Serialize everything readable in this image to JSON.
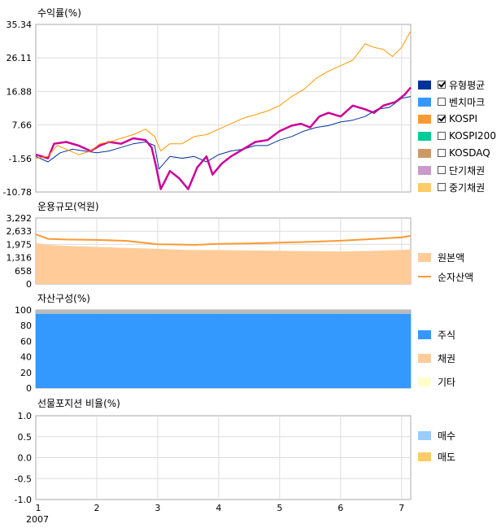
{
  "chart_data": [
    {
      "type": "line",
      "title": "수익률(%)",
      "yticks": [
        "35.34",
        "26.11",
        "16.88",
        "7.66",
        "-1.56",
        "-10.78"
      ],
      "ylim": [
        -10.78,
        35.34
      ],
      "x_period_start": 1,
      "x_period_end": 7.15,
      "xticks": [
        "1",
        "2",
        "3",
        "4",
        "5",
        "6",
        "7"
      ],
      "x_sublabel": "2007",
      "grid": true,
      "legend_position": "right",
      "series": [
        {
          "name": "유형평균",
          "color": "#003399",
          "x": [
            1.0,
            1.2,
            1.4,
            1.6,
            1.8,
            2.0,
            2.2,
            2.4,
            2.6,
            2.8,
            2.95,
            3.02,
            3.2,
            3.4,
            3.6,
            3.8,
            4.0,
            4.2,
            4.4,
            4.6,
            4.8,
            5.0,
            5.2,
            5.4,
            5.6,
            5.8,
            6.0,
            6.2,
            6.4,
            6.6,
            6.8,
            7.0,
            7.15
          ],
          "values": [
            -1,
            -2.5,
            0,
            1,
            0.5,
            0,
            0.5,
            1.5,
            2.5,
            3,
            2,
            -4.5,
            -1,
            -1.5,
            -1,
            -2.5,
            -0.5,
            0.5,
            1,
            2,
            2,
            3.5,
            4.5,
            6,
            7,
            7.5,
            8.5,
            9,
            10,
            12,
            12.5,
            15,
            15.5
          ]
        },
        {
          "name": "KOSPI",
          "color": "#cc0099",
          "x": [
            1.0,
            1.2,
            1.3,
            1.5,
            1.7,
            1.9,
            2.05,
            2.2,
            2.4,
            2.6,
            2.8,
            2.9,
            2.97,
            3.05,
            3.2,
            3.35,
            3.5,
            3.65,
            3.8,
            3.9,
            4.05,
            4.2,
            4.4,
            4.6,
            4.8,
            5.0,
            5.2,
            5.35,
            5.5,
            5.65,
            5.8,
            6.0,
            6.2,
            6.4,
            6.55,
            6.7,
            6.9,
            7.05,
            7.15
          ],
          "values": [
            -0.5,
            -1.5,
            2.5,
            3,
            2,
            0.5,
            2,
            3,
            2.5,
            4,
            3.5,
            1.5,
            -3.5,
            -10,
            -5,
            -7,
            -10,
            -4,
            -1,
            -6,
            -3,
            -1,
            1,
            3,
            3.5,
            6,
            7.5,
            8,
            7,
            10,
            11,
            10,
            13,
            12,
            11,
            13,
            14,
            16,
            18
          ]
        },
        {
          "name": "중기채권",
          "color": "#ff9900",
          "x": [
            1.0,
            1.2,
            1.35,
            1.5,
            1.7,
            1.9,
            2.05,
            2.2,
            2.4,
            2.6,
            2.8,
            2.95,
            3.05,
            3.2,
            3.4,
            3.6,
            3.8,
            4.0,
            4.2,
            4.4,
            4.6,
            4.8,
            5.0,
            5.2,
            5.4,
            5.6,
            5.8,
            6.0,
            6.2,
            6.4,
            6.55,
            6.7,
            6.85,
            7.0,
            7.15
          ],
          "values": [
            -1.5,
            -1,
            2,
            1,
            -0.5,
            0.5,
            2.5,
            3,
            4,
            5,
            6.5,
            4.5,
            0.5,
            2.5,
            2.5,
            4.5,
            5,
            6.5,
            8,
            9.5,
            10.5,
            11.5,
            13,
            15.5,
            17.5,
            20.5,
            22.5,
            24,
            25.5,
            30,
            29,
            28.5,
            26.5,
            29,
            33.5
          ]
        }
      ],
      "legend": [
        {
          "label": "유형평균",
          "color": "#003399",
          "checkbox": true,
          "checked": true
        },
        {
          "label": "벤치마크",
          "color": "#3399ff",
          "checkbox": true,
          "checked": false
        },
        {
          "label": "KOSPI",
          "color": "#ff9933",
          "checkbox": true,
          "checked": true
        },
        {
          "label": "KOSPI200",
          "color": "#00cc99",
          "checkbox": true,
          "checked": false
        },
        {
          "label": "KOSDAQ",
          "color": "#cc9966",
          "checkbox": true,
          "checked": false
        },
        {
          "label": "단기채권",
          "color": "#cc99cc",
          "checkbox": true,
          "checked": false
        },
        {
          "label": "중기채권",
          "color": "#ffcc66",
          "checkbox": true,
          "checked": false
        }
      ]
    },
    {
      "type": "area",
      "title": "운용규모(억원)",
      "yticks": [
        "3,292",
        "2,633",
        "1,975",
        "1,316",
        "658",
        "0"
      ],
      "ylim": [
        0,
        3292
      ],
      "series": [
        {
          "name": "원본액",
          "color": "#ffcc99",
          "kind": "area",
          "x": [
            1.0,
            1.2,
            1.5,
            2.0,
            2.5,
            3.0,
            3.5,
            4.0,
            4.5,
            5.0,
            5.5,
            6.0,
            6.5,
            7.0,
            7.15
          ],
          "values": [
            2050,
            1950,
            1900,
            1850,
            1800,
            1750,
            1700,
            1690,
            1670,
            1660,
            1640,
            1620,
            1650,
            1700,
            1720
          ]
        },
        {
          "name": "순자산액",
          "color": "#ff9933",
          "kind": "line",
          "x": [
            1.0,
            1.2,
            1.5,
            2.0,
            2.5,
            2.8,
            3.0,
            3.3,
            3.6,
            4.0,
            4.5,
            5.0,
            5.5,
            6.0,
            6.5,
            7.0,
            7.15
          ],
          "values": [
            2480,
            2250,
            2220,
            2200,
            2150,
            2050,
            1980,
            1970,
            1950,
            2000,
            2020,
            2060,
            2100,
            2160,
            2240,
            2330,
            2400
          ]
        }
      ],
      "legend": [
        {
          "label": "원본액",
          "color": "#ffcc99",
          "style": "box"
        },
        {
          "label": "순자산액",
          "color": "#ff9933",
          "style": "line"
        }
      ]
    },
    {
      "type": "area",
      "title": "자산구성(%)",
      "yticks": [
        "100",
        "80",
        "60",
        "40",
        "20",
        "0"
      ],
      "ylim": [
        0,
        100
      ],
      "series": [
        {
          "name": "주식",
          "color": "#3399ff",
          "x": [
            1.0,
            2.0,
            3.0,
            4.0,
            5.0,
            6.0,
            7.0,
            7.15
          ],
          "values": [
            95,
            95,
            95,
            95,
            95,
            95,
            95,
            95
          ]
        },
        {
          "name": "채권",
          "color": "#ffcc99",
          "x": [
            1.0,
            7.15
          ],
          "values": [
            0,
            0
          ]
        },
        {
          "name": "기타",
          "color": "#ffffcc",
          "x": [
            1.0,
            7.15
          ],
          "values": [
            5,
            5
          ]
        }
      ],
      "legend": [
        {
          "label": "주식",
          "color": "#3399ff",
          "style": "box"
        },
        {
          "label": "채권",
          "color": "#ffcc99",
          "style": "box"
        },
        {
          "label": "기타",
          "color": "#ffffcc",
          "style": "box"
        }
      ]
    },
    {
      "type": "line",
      "title": "선물포지션 비율(%)",
      "yticks": [
        "1.0",
        "0.5",
        "0.0",
        "-0.5",
        "-1.0"
      ],
      "ylim": [
        -1.0,
        1.0
      ],
      "series": [],
      "legend": [
        {
          "label": "매수",
          "color": "#99ccff",
          "style": "box"
        },
        {
          "label": "매도",
          "color": "#ffcc66",
          "style": "box"
        }
      ]
    }
  ]
}
